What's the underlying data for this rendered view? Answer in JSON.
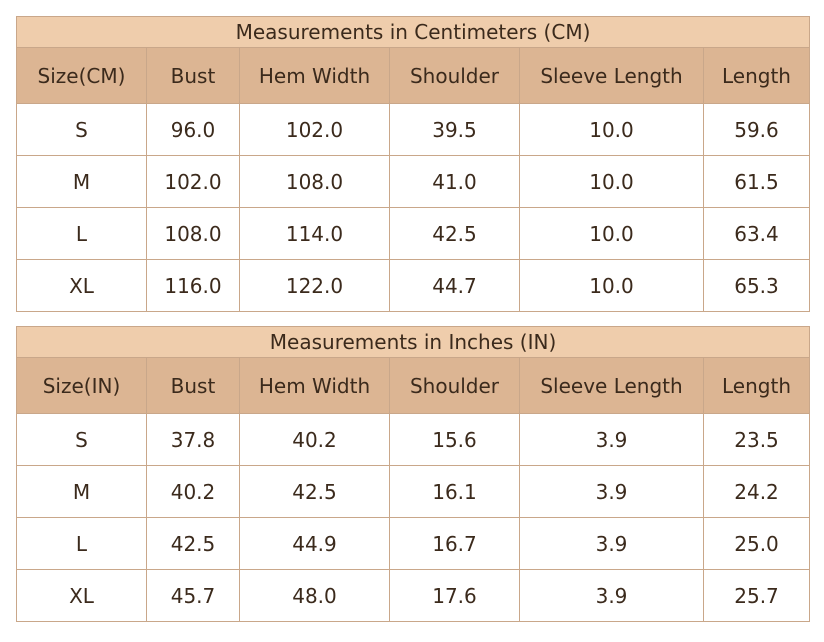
{
  "tables": [
    {
      "title": "Measurements in Centimeters (CM)",
      "headers": [
        "Size(CM)",
        "Bust",
        "Hem Width",
        "Shoulder",
        "Sleeve Length",
        "Length"
      ],
      "rows": [
        [
          "S",
          "96.0",
          "102.0",
          "39.5",
          "10.0",
          "59.6"
        ],
        [
          "M",
          "102.0",
          "108.0",
          "41.0",
          "10.0",
          "61.5"
        ],
        [
          "L",
          "108.0",
          "114.0",
          "42.5",
          "10.0",
          "63.4"
        ],
        [
          "XL",
          "116.0",
          "122.0",
          "44.7",
          "10.0",
          "65.3"
        ]
      ]
    },
    {
      "title": "Measurements in Inches (IN)",
      "headers": [
        "Size(IN)",
        "Bust",
        "Hem Width",
        "Shoulder",
        "Sleeve Length",
        "Length"
      ],
      "rows": [
        [
          "S",
          "37.8",
          "40.2",
          "15.6",
          "3.9",
          "23.5"
        ],
        [
          "M",
          "40.2",
          "42.5",
          "16.1",
          "3.9",
          "24.2"
        ],
        [
          "L",
          "42.5",
          "44.9",
          "16.7",
          "3.9",
          "25.0"
        ],
        [
          "XL",
          "45.7",
          "48.0",
          "17.6",
          "3.9",
          "25.7"
        ]
      ]
    }
  ]
}
